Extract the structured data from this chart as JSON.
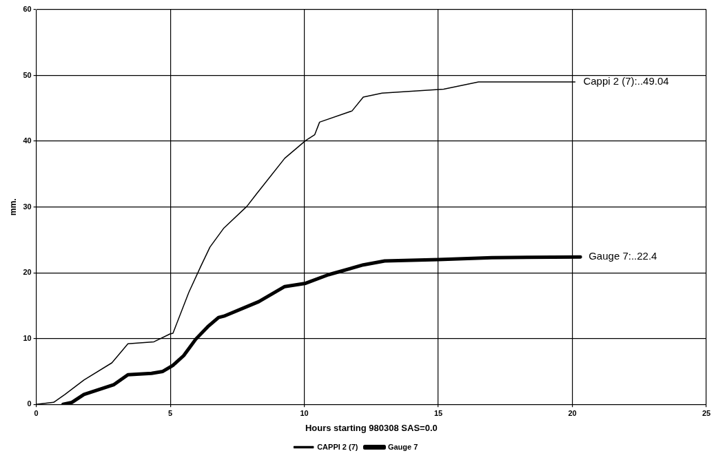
{
  "chart_data": {
    "type": "line",
    "xlabel": "Hours starting 980308 SAS=0.0",
    "ylabel": "mm.",
    "xlim": [
      0,
      25
    ],
    "xticks": [
      0,
      5,
      10,
      15,
      20,
      25
    ],
    "ylim": [
      0,
      60
    ],
    "yticks": [
      0,
      10,
      20,
      30,
      40,
      50,
      60
    ],
    "grid": true,
    "legend": "bottom",
    "marker": "none",
    "line_style": "solid",
    "series": [
      {
        "name": "CAPPI 2 (7)",
        "color": "#000000",
        "x": [
          0,
          0.65,
          1.07,
          1.78,
          2.82,
          3.42,
          4.39,
          4.99,
          5.1,
          5.69,
          6.14,
          6.48,
          7.0,
          7.86,
          8.22,
          9.27,
          10.05,
          10.39,
          10.57,
          11.78,
          12.2,
          12.9,
          15.2,
          16.5,
          20.1
        ],
        "values": [
          0,
          0.3,
          1.5,
          3.7,
          6.3,
          9.2,
          9.5,
          10.7,
          10.8,
          17,
          21,
          23.9,
          26.8,
          30.1,
          32,
          37.4,
          40.1,
          41,
          42.9,
          44.6,
          46.7,
          47.3,
          47.9,
          49,
          49
        ]
      },
      {
        "name": "Gauge 7",
        "color": "#000000",
        "x": [
          1.0,
          1.33,
          1.78,
          2.9,
          3.42,
          4.3,
          4.72,
          5.09,
          5.5,
          5.95,
          6.4,
          6.8,
          7.0,
          8.3,
          9.27,
          10.05,
          10.9,
          12.2,
          13,
          15,
          17,
          20.3
        ],
        "values": [
          0,
          0.3,
          1.5,
          3.0,
          4.5,
          4.7,
          5.0,
          5.9,
          7.4,
          9.9,
          11.8,
          13.2,
          13.4,
          15.6,
          17.9,
          18.4,
          19.7,
          21.2,
          21.8,
          22,
          22.3,
          22.4
        ]
      }
    ],
    "annotations": [
      {
        "text": "Cappi 2 (7):..49.04",
        "x": 20.1,
        "y": 49
      },
      {
        "text": "Gauge 7:..22.4",
        "x": 20.3,
        "y": 22.4
      }
    ]
  }
}
